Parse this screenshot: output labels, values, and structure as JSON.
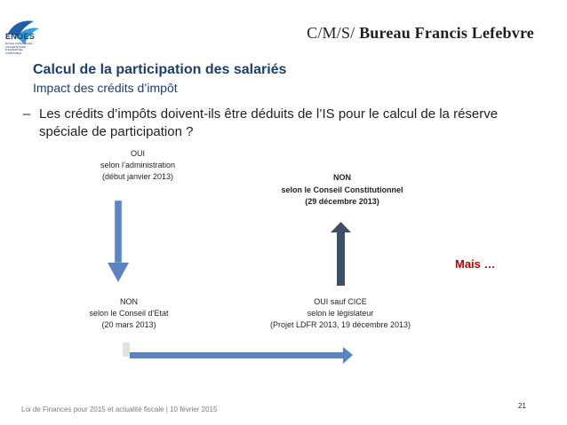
{
  "brand": {
    "logo_word": "ENOES",
    "logo_sub": [
      "ÉCOLE SUPÉRIEURE",
      "UNIVERSITAIRE",
      "D'EXPERTISE COMPTABLE"
    ],
    "firm": "C'M'S' Bureau Francis Lefebvre",
    "firm_cms": "C/M/S/",
    "firm_name": "Bureau Francis Lefebvre"
  },
  "slide": {
    "title": "Calcul de la participation des salariés",
    "subtitle": "Impact des crédits d’impôt",
    "question_dash": "–",
    "question": "Les crédits d’impôts doivent-ils être déduits de l’IS pour le calcul de la réserve spéciale de participation ?",
    "mais": "Mais …"
  },
  "nodes": {
    "n1": [
      "OUI",
      "selon l’administration",
      "(début janvier 2013)"
    ],
    "n2": [
      "NON",
      "selon le Conseil Constitutionnel",
      "(29 décembre 2013)"
    ],
    "n3": [
      "NON",
      "selon le Conseil d’Etat",
      "(20 mars 2013)"
    ],
    "n4": [
      "OUI sauf CICE",
      "selon le législateur",
      "(Projet LDFR 2013, 19 décembre 2013)"
    ]
  },
  "colors": {
    "arrow_blue": "#5b84c4",
    "arrow_dark": "#3d5068",
    "title_blue": "#1f3f6b",
    "mais_red": "#c00000"
  },
  "footer": {
    "text": "Loi de Finances pour 2015 et  actualité fiscale | 10 février 2015",
    "page": "21"
  }
}
